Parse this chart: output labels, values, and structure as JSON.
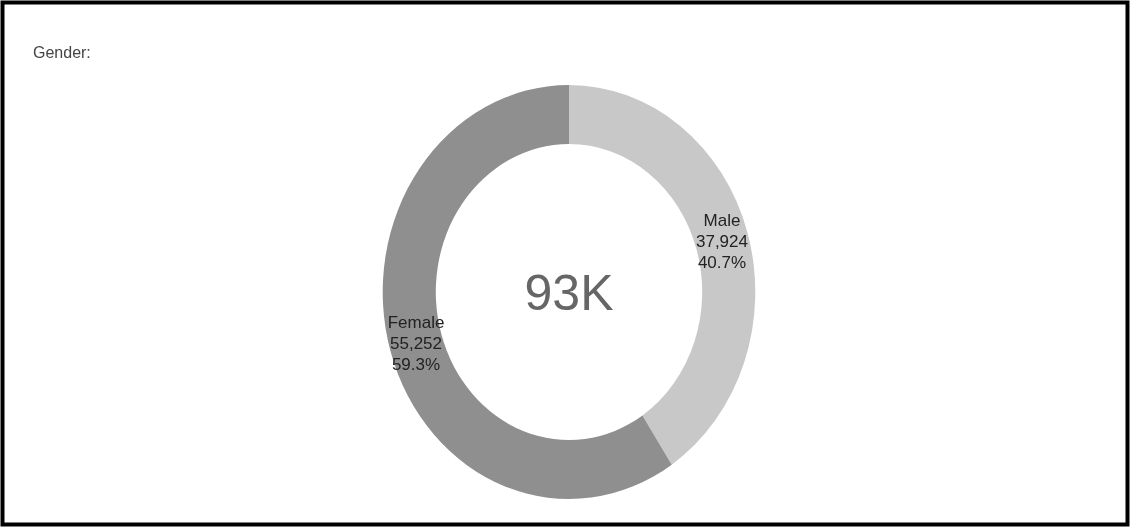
{
  "chart_data": {
    "type": "donut",
    "title": "Gender:",
    "categories": [
      "Male",
      "Female"
    ],
    "values": [
      37924,
      55252
    ],
    "colors": [
      "#c8c8c8",
      "#8f8f8f"
    ],
    "value_labels": [
      "37,924\n40.7%",
      "55,252\n59.3%"
    ],
    "annotations": [
      "93K"
    ]
  }
}
